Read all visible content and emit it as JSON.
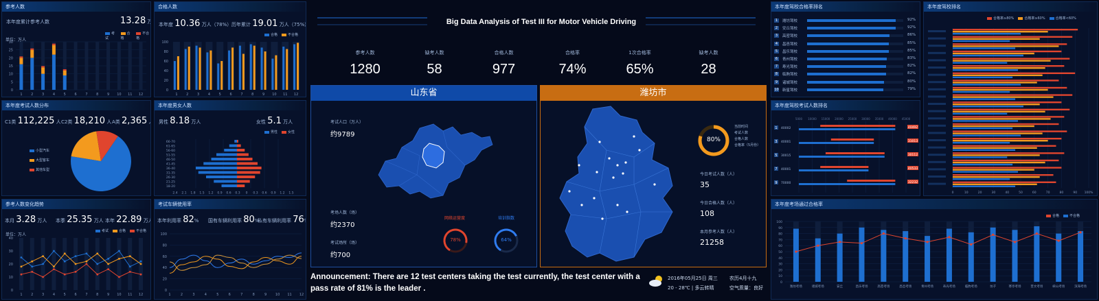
{
  "center": {
    "title": "Big Data Analysis of Test III for Motor Vehicle Driving",
    "kpis": [
      {
        "label": "参考人数",
        "value": "1280"
      },
      {
        "label": "缺考人数",
        "value": "58"
      },
      {
        "label": "合格人数",
        "value": "977"
      },
      {
        "label": "合格率",
        "value": "74%"
      },
      {
        "label": "1次合格率",
        "value": "65%"
      },
      {
        "label": "缺考人数",
        "value": "28"
      }
    ],
    "left_map": {
      "title": "山东省",
      "stat1_label": "考试人口（万人）",
      "stat1_value": "约9789",
      "stat2_label": "考场人数（场）",
      "stat2_value": "约2370",
      "stat3_label": "考试场所（场）",
      "stat3_value": "约700",
      "gauge1_label": "网络运营度",
      "gauge1_value": "78%",
      "gauge2_label": "培训指数",
      "gauge2_value": "64%"
    },
    "right_map": {
      "title": "潍坊市",
      "donut_value": "80%",
      "donut_legend": [
        "当前时间",
        "考试人数",
        "合格人数",
        "合格率（5月份）"
      ],
      "stat1_label": "今日考试人数（人）",
      "stat1_value": "35",
      "stat2_label": "今日合格人数（人）",
      "stat2_value": "108",
      "stat3_label": "本月参考人数（人）",
      "stat3_value": "21258"
    },
    "announcement": "Announcement: There are 12 test centers taking the test currently, the test center with a pass rate of 81% is the leader .",
    "date_line1": "2016年05月25日 周三",
    "date_line2": "20 - 28℃ | 多云转晴",
    "date_line3": "农历4月十九",
    "date_line4": "空气质量：良好"
  },
  "left": {
    "p1": {
      "title": "参考人数",
      "label": "本年度累计参考人数",
      "value": "13.28",
      "unit": "万人",
      "legend": [
        "考试",
        "合格",
        "不合格"
      ],
      "ylabel": "单位：万人"
    },
    "p2": {
      "title": "合格人数",
      "label1": "本年度",
      "value1": "10.36",
      "unit1": "万人（78%）",
      "label2": "历年累计",
      "value2": "19.01",
      "unit2": "万人（75%）",
      "legend": [
        "合格",
        "不合格"
      ]
    },
    "p3": {
      "title": "本年度考试人数分布",
      "l1": "C1类",
      "v1": "112,225",
      "l2": "C2类",
      "v2": "18,210",
      "l3": "A类",
      "v3": "2,365",
      "u": "人",
      "legend": [
        "小型汽车",
        "大型客车",
        "其他车型"
      ]
    },
    "p4": {
      "title": "本年度男女人数",
      "l1": "男性",
      "v1": "8.18",
      "l2": "女性",
      "v2": "5.1",
      "u": "万人",
      "legend": [
        "男性",
        "女性"
      ]
    },
    "p5": {
      "title": "参考人数变化趋势",
      "l1": "本月",
      "v1": "3.28",
      "l2": "本季",
      "v2": "25.35",
      "l3": "本年",
      "v3": "22.89",
      "u": "万人",
      "legend": [
        "考试",
        "合格",
        "不合格"
      ],
      "ylabel": "单位：万人"
    },
    "p6": {
      "title": "考试车辆使用率",
      "l1": "本年利用率",
      "v1": "82",
      "l2": "国有车辆利用率",
      "v2": "80",
      "l3": "私有车辆利用率",
      "v3": "76",
      "u": "%"
    }
  },
  "right": {
    "p1": {
      "title": "本年度驾校合格率排名",
      "items": [
        {
          "rank": "1",
          "name": "潍坊驾校",
          "pct": "92%",
          "fill": 0.92
        },
        {
          "rank": "2",
          "name": "安丘驾校",
          "pct": "92%",
          "fill": 0.92
        },
        {
          "rank": "3",
          "name": "高密驾校",
          "pct": "86%",
          "fill": 0.86
        },
        {
          "rank": "4",
          "name": "昌邑驾校",
          "pct": "85%",
          "fill": 0.85
        },
        {
          "rank": "5",
          "name": "昌乐驾校",
          "pct": "85%",
          "fill": 0.85
        },
        {
          "rank": "6",
          "name": "青州驾校",
          "pct": "83%",
          "fill": 0.83
        },
        {
          "rank": "7",
          "name": "寿光驾校",
          "pct": "82%",
          "fill": 0.82
        },
        {
          "rank": "8",
          "name": "临朐驾校",
          "pct": "82%",
          "fill": 0.82
        },
        {
          "rank": "9",
          "name": "诸城驾校",
          "pct": "80%",
          "fill": 0.8
        },
        {
          "rank": "10",
          "name": "新星驾校",
          "pct": "79%",
          "fill": 0.79
        }
      ]
    },
    "p2": {
      "title": "本年度驾校排名",
      "legend": [
        "合格率≥80%",
        "合格率≥60%",
        "合格率<60%"
      ]
    },
    "p3": {
      "title": "本年度驾校考试人数排名",
      "items": [
        {
          "rank": "1",
          "left": "40002",
          "right": "40492"
        },
        {
          "rank": "3",
          "left": "40001",
          "right": "31013"
        },
        {
          "rank": "5",
          "left": "30015",
          "right": "30112"
        },
        {
          "rank": "7",
          "left": "40001",
          "right": "40533"
        },
        {
          "rank": "9",
          "left": "70000",
          "right": "32232"
        }
      ],
      "axis": [
        "5000",
        "10000",
        "15000",
        "20000",
        "25000",
        "30000",
        "35000",
        "40000",
        "45000"
      ]
    },
    "p4": {
      "title": "本年度考场通过合格率",
      "legend": [
        "合格",
        "不合格"
      ],
      "categories": [
        "潍坊考场",
        "诸城考场",
        "安丘",
        "昌乐考场",
        "高密考场",
        "昌邑考场",
        "青州考场",
        "寿光考场",
        "临朐考场",
        "坊子",
        "寒亭考场",
        "奎文考场",
        "峡山考场",
        "滨海考场"
      ],
      "bars": [
        88,
        72,
        80,
        90,
        86,
        84,
        76,
        88,
        82,
        90,
        86,
        92,
        80,
        84
      ],
      "line": [
        50,
        60,
        66,
        64,
        80,
        72,
        66,
        74,
        62,
        78,
        66,
        80,
        68,
        82
      ]
    }
  },
  "chart_data": [
    {
      "type": "bar",
      "title": "参考人数",
      "categories": [
        "1",
        "2",
        "3",
        "4",
        "5",
        "6",
        "7",
        "8",
        "9",
        "10",
        "11",
        "12"
      ],
      "series": [
        {
          "name": "考试",
          "values": [
            20,
            25,
            14,
            28,
            12,
            0,
            0,
            0,
            0,
            0,
            0,
            0
          ]
        },
        {
          "name": "合格",
          "values": [
            16,
            20,
            10,
            22,
            9,
            0,
            0,
            0,
            0,
            0,
            0,
            0
          ]
        },
        {
          "name": "不合格",
          "values": [
            4,
            5,
            4,
            6,
            3,
            0,
            0,
            0,
            0,
            0,
            0,
            0
          ]
        }
      ],
      "ylim": [
        0,
        30
      ]
    },
    {
      "type": "bar",
      "title": "合格人数",
      "categories": [
        "1",
        "2",
        "3",
        "4",
        "5",
        "6",
        "7",
        "8",
        "9",
        "10",
        "11",
        "12"
      ],
      "series": [
        {
          "name": "合格",
          "values": [
            60,
            85,
            92,
            78,
            55,
            82,
            92,
            95,
            88,
            65,
            90,
            95
          ]
        },
        {
          "name": "不合格",
          "values": [
            70,
            90,
            88,
            82,
            60,
            88,
            75,
            92,
            80,
            72,
            85,
            98
          ]
        }
      ],
      "ylim": [
        0,
        100
      ]
    },
    {
      "type": "pie",
      "title": "本年度考试人数分布",
      "categories": [
        "小型汽车",
        "大型客车",
        "其他车型"
      ],
      "values": [
        112225,
        18210,
        2365
      ]
    },
    {
      "type": "bar",
      "title": "本年度男女人数",
      "categories": [
        "66-70",
        "61-65",
        "56-60",
        "51-55",
        "46-50",
        "41-45",
        "36-40",
        "31-35",
        "26-30",
        "21-25",
        "18-20"
      ],
      "series": [
        {
          "name": "男性",
          "values": [
            0.1,
            0.3,
            0.5,
            0.8,
            1.0,
            1.3,
            1.6,
            1.5,
            1.2,
            0.9,
            0.6
          ]
        },
        {
          "name": "女性",
          "values": [
            0.05,
            0.15,
            0.3,
            0.45,
            0.6,
            0.8,
            0.95,
            0.9,
            0.7,
            0.5,
            0.3
          ]
        }
      ]
    },
    {
      "type": "line",
      "title": "参考人数变化趋势",
      "x": [
        "1",
        "2",
        "3",
        "4",
        "5",
        "6",
        "7",
        "8",
        "9",
        "10",
        "11",
        "12"
      ],
      "series": [
        {
          "name": "考试",
          "values": [
            25,
            18,
            20,
            30,
            22,
            26,
            28,
            20,
            24,
            30,
            18,
            22
          ]
        },
        {
          "name": "合格",
          "values": [
            18,
            22,
            26,
            18,
            28,
            20,
            22,
            28,
            20,
            24,
            26,
            20
          ]
        },
        {
          "name": "不合格",
          "values": [
            12,
            14,
            10,
            16,
            12,
            14,
            20,
            12,
            16,
            10,
            14,
            12
          ]
        }
      ],
      "ylim": [
        0,
        40
      ]
    },
    {
      "type": "line",
      "title": "考试车辆使用率",
      "x": [
        "1",
        "2",
        "3",
        "4",
        "5",
        "6",
        "7",
        "8",
        "9",
        "10",
        "11",
        "12"
      ],
      "series": [
        {
          "values": [
            40,
            55,
            62,
            52,
            40,
            48,
            55,
            46,
            52,
            60,
            58,
            66
          ]
        },
        {
          "values": [
            30,
            45,
            50,
            60,
            55,
            42,
            38,
            50,
            58,
            52,
            46,
            60
          ]
        },
        {
          "values": [
            50,
            35,
            40,
            45,
            62,
            58,
            48,
            40,
            46,
            55,
            62,
            56
          ]
        }
      ],
      "ylim": [
        0,
        100
      ]
    },
    {
      "type": "bar",
      "title": "本年度驾校排名",
      "series": [
        {
          "name": "合格率≥80%",
          "values": [
            92,
            88,
            84,
            80,
            86,
            82,
            90,
            78,
            84,
            88,
            80,
            86,
            82,
            78,
            84,
            80,
            76,
            82,
            78,
            80,
            74,
            76
          ]
        },
        {
          "name": "合格率≥60%",
          "values": [
            70,
            64,
            78,
            60,
            72,
            68,
            66,
            62,
            70,
            74,
            64,
            68,
            72,
            60,
            66,
            70,
            62,
            64,
            68,
            60,
            64,
            62
          ]
        },
        {
          "name": "合格率<60%",
          "values": [
            50,
            42,
            46,
            52,
            40,
            48,
            44,
            50,
            42,
            46,
            52,
            40,
            48,
            44,
            50,
            42,
            46,
            40,
            44,
            48,
            42,
            46
          ]
        }
      ]
    }
  ]
}
